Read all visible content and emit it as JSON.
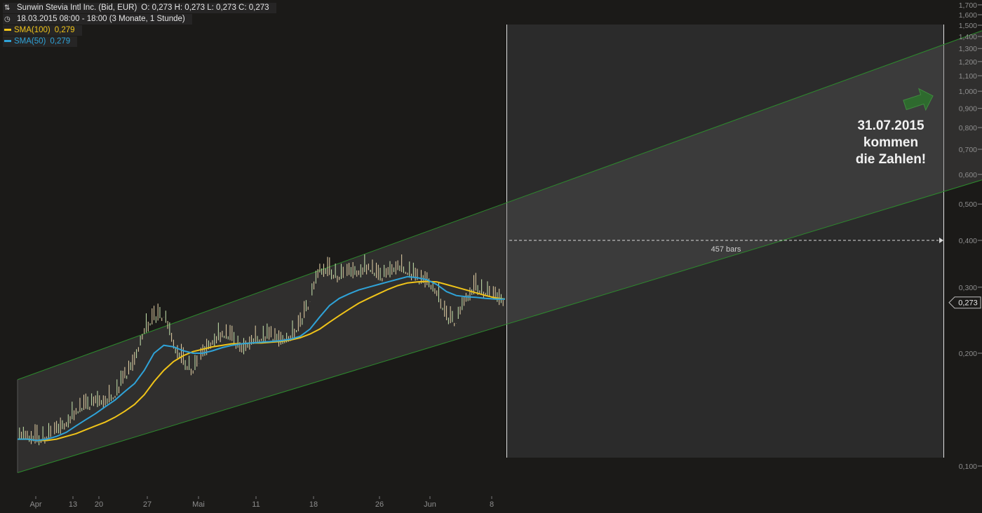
{
  "header": {
    "instrument": "Sunwin Stevia Intl Inc. (Bid, EUR)",
    "ohlc": "O: 0,273   H: 0,273   L: 0,273   C: 0,273",
    "period": "18.03.2015 08:00 - 18:00 (3 Monate, 1 Stunde)",
    "sma100_label": "SMA(100)",
    "sma100_value": "0,279",
    "sma50_label": "SMA(50)",
    "sma50_value": "0,279"
  },
  "annotation": {
    "line1": "31.07.2015",
    "line2": "kommen",
    "line3": "die Zahlen!"
  },
  "measure_label": "457 bars",
  "last_price_label": "0,273",
  "colors": {
    "sma100": "#f0c419",
    "sma50": "#2fa3d8",
    "channel": "#2d8a2d",
    "arrow": "#2f6b2f"
  },
  "chart_data": {
    "type": "line",
    "scale": "log",
    "ylim": [
      0.09,
      1.7
    ],
    "y_ticks": [
      "0,100",
      "0,200",
      "0,300",
      "0,400",
      "0,500",
      "0,600",
      "0,700",
      "0,800",
      "0,900",
      "1,000",
      "1,100",
      "1,200",
      "1,300",
      "1,400",
      "1,500",
      "1,600",
      "1,700"
    ],
    "x_ticks": [
      "Apr",
      "13",
      "20",
      "27",
      "Mai",
      "11",
      "18",
      "26",
      "Jun",
      "8"
    ],
    "series": [
      {
        "name": "Price",
        "values": [
          0.12,
          0.12,
          0.118,
          0.12,
          0.125,
          0.13,
          0.14,
          0.145,
          0.15,
          0.148,
          0.155,
          0.175,
          0.19,
          0.23,
          0.25,
          0.255,
          0.21,
          0.19,
          0.18,
          0.2,
          0.215,
          0.225,
          0.22,
          0.205,
          0.215,
          0.22,
          0.225,
          0.215,
          0.22,
          0.24,
          0.28,
          0.335,
          0.33,
          0.32,
          0.33,
          0.33,
          0.34,
          0.32,
          0.33,
          0.34,
          0.33,
          0.32,
          0.31,
          0.29,
          0.25,
          0.245,
          0.28,
          0.3,
          0.29,
          0.285,
          0.273
        ]
      },
      {
        "name": "SMA(50)",
        "values": [
          0.118,
          0.118,
          0.117,
          0.118,
          0.12,
          0.123,
          0.128,
          0.133,
          0.138,
          0.144,
          0.15,
          0.158,
          0.166,
          0.18,
          0.2,
          0.21,
          0.208,
          0.203,
          0.2,
          0.2,
          0.203,
          0.207,
          0.21,
          0.212,
          0.213,
          0.214,
          0.215,
          0.216,
          0.218,
          0.222,
          0.232,
          0.25,
          0.268,
          0.28,
          0.288,
          0.295,
          0.3,
          0.305,
          0.31,
          0.315,
          0.32,
          0.318,
          0.314,
          0.305,
          0.292,
          0.285,
          0.283,
          0.282,
          0.28,
          0.279,
          0.279
        ]
      },
      {
        "name": "SMA(100)",
        "values": [
          0.118,
          0.118,
          0.117,
          0.117,
          0.118,
          0.12,
          0.122,
          0.125,
          0.128,
          0.131,
          0.135,
          0.14,
          0.146,
          0.155,
          0.168,
          0.18,
          0.19,
          0.197,
          0.202,
          0.205,
          0.208,
          0.21,
          0.212,
          0.212,
          0.213,
          0.213,
          0.214,
          0.215,
          0.217,
          0.22,
          0.225,
          0.232,
          0.242,
          0.252,
          0.262,
          0.272,
          0.28,
          0.288,
          0.296,
          0.303,
          0.308,
          0.31,
          0.311,
          0.31,
          0.305,
          0.3,
          0.295,
          0.29,
          0.285,
          0.281,
          0.279
        ]
      }
    ],
    "channel": {
      "lower_start": 0.096,
      "lower_end": 0.58,
      "upper_start": 0.17,
      "upper_end": 1.45
    },
    "projection": {
      "bars": 457,
      "level": 0.4
    },
    "last_price": 0.273,
    "grid": false
  }
}
